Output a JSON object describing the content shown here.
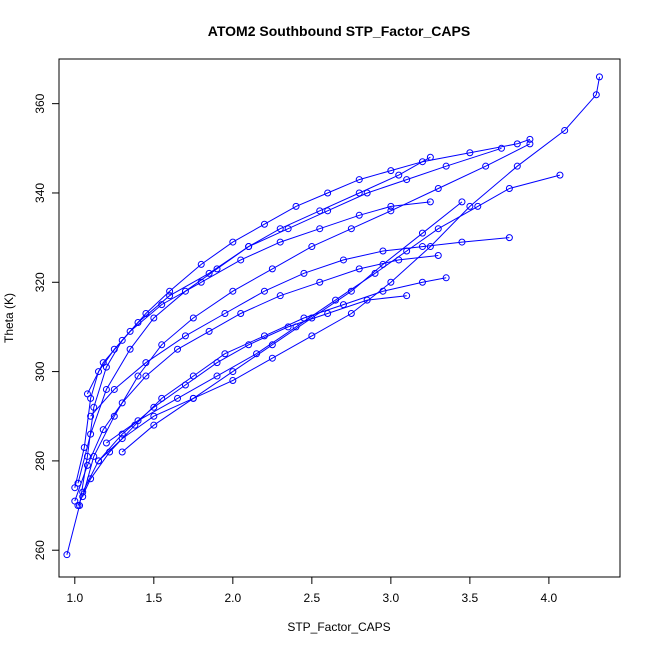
{
  "chart_data": {
    "type": "line",
    "title": "ATOM2 Southbound STP_Factor_CAPS",
    "xlabel": "STP_Factor_CAPS",
    "ylabel": "Theta (K)",
    "xlim": [
      0.9,
      4.45
    ],
    "ylim": [
      254,
      370
    ],
    "x_ticks": [
      1.0,
      1.5,
      2.0,
      2.5,
      3.0,
      3.5,
      4.0
    ],
    "x_tick_labels": [
      "1.0",
      "1.5",
      "2.0",
      "2.5",
      "3.0",
      "3.5",
      "4.0"
    ],
    "y_ticks": [
      260,
      280,
      300,
      320,
      340,
      360
    ],
    "y_tick_labels": [
      "260",
      "280",
      "300",
      "320",
      "340",
      "360"
    ],
    "grid": false,
    "legend": "none",
    "marker": "open-circle",
    "color": "#0000ff",
    "series": [
      {
        "x": [
          0.95,
          1.03,
          1.08,
          1.12,
          1.2,
          1.3,
          1.45,
          1.6,
          1.8,
          2.0,
          2.2,
          2.4,
          2.6,
          2.8,
          3.0,
          3.2,
          3.5,
          3.8,
          3.88
        ],
        "y": [
          259,
          270,
          281,
          292,
          301,
          307,
          313,
          318,
          324,
          329,
          333,
          337,
          340,
          343,
          345,
          347,
          349,
          351,
          352
        ]
      },
      {
        "x": [
          1.0,
          1.06,
          1.1,
          1.15,
          1.25,
          1.4,
          1.6,
          1.85,
          2.1,
          2.35,
          2.6,
          2.85,
          3.1,
          3.35,
          3.7
        ],
        "y": [
          274,
          283,
          294,
          300,
          305,
          311,
          317,
          322,
          328,
          332,
          336,
          340,
          343,
          346,
          350
        ]
      },
      {
        "x": [
          1.02,
          1.1,
          1.2,
          1.35,
          1.5,
          1.7,
          1.9,
          2.1,
          2.3,
          2.55,
          2.8,
          3.05,
          3.25
        ],
        "y": [
          275,
          286,
          296,
          305,
          312,
          318,
          323,
          328,
          332,
          336,
          340,
          344,
          348
        ]
      },
      {
        "x": [
          1.05,
          1.12,
          1.25,
          1.4,
          1.55,
          1.75,
          2.0,
          2.25,
          2.5,
          2.75,
          3.0,
          3.3,
          3.6,
          3.88
        ],
        "y": [
          272,
          281,
          290,
          299,
          306,
          312,
          318,
          323,
          328,
          332,
          336,
          341,
          346,
          351
        ]
      },
      {
        "x": [
          1.0,
          1.08,
          1.18,
          1.3,
          1.45,
          1.65,
          1.85,
          2.05,
          2.3,
          2.55,
          2.8,
          3.05,
          3.3
        ],
        "y": [
          271,
          279,
          287,
          293,
          299,
          305,
          309,
          313,
          317,
          320,
          323,
          325,
          326
        ]
      },
      {
        "x": [
          1.02,
          1.1,
          1.22,
          1.38,
          1.55,
          1.75,
          1.95,
          2.2,
          2.45,
          2.7,
          2.95,
          3.2,
          3.35
        ],
        "y": [
          270,
          276,
          282,
          288,
          294,
          299,
          304,
          308,
          312,
          315,
          318,
          320,
          321
        ]
      },
      {
        "x": [
          1.05,
          1.15,
          1.3,
          1.5,
          1.7,
          1.9,
          2.1,
          2.35,
          2.6,
          2.85,
          3.1
        ],
        "y": [
          273,
          280,
          286,
          292,
          297,
          302,
          306,
          310,
          313,
          316,
          317
        ]
      },
      {
        "x": [
          1.15,
          1.3,
          1.5,
          1.75,
          2.0,
          2.25,
          2.5,
          2.75,
          3.0,
          3.25,
          3.5,
          3.8,
          4.1,
          4.3,
          4.32
        ],
        "y": [
          280,
          285,
          290,
          294,
          298,
          303,
          308,
          313,
          320,
          328,
          337,
          346,
          354,
          362,
          366
        ]
      },
      {
        "x": [
          1.2,
          1.4,
          1.65,
          1.9,
          2.15,
          2.4,
          2.65,
          2.9,
          3.1,
          3.3,
          3.55,
          3.75,
          4.07
        ],
        "y": [
          284,
          289,
          294,
          299,
          304,
          310,
          316,
          322,
          327,
          332,
          337,
          341,
          344
        ]
      },
      {
        "x": [
          1.3,
          1.5,
          1.75,
          2.0,
          2.25,
          2.5,
          2.75,
          2.95,
          3.2,
          3.45
        ],
        "y": [
          282,
          288,
          294,
          300,
          306,
          312,
          318,
          324,
          331,
          338
        ]
      },
      {
        "x": [
          1.1,
          1.25,
          1.45,
          1.7,
          1.95,
          2.2,
          2.45,
          2.7,
          2.95,
          3.2,
          3.45,
          3.75
        ],
        "y": [
          290,
          296,
          302,
          308,
          313,
          318,
          322,
          325,
          327,
          328,
          329,
          330
        ]
      },
      {
        "x": [
          1.08,
          1.18,
          1.35,
          1.55,
          1.8,
          2.05,
          2.3,
          2.55,
          2.8,
          3.0,
          3.25
        ],
        "y": [
          295,
          302,
          309,
          315,
          320,
          325,
          329,
          332,
          335,
          337,
          338
        ]
      }
    ]
  }
}
